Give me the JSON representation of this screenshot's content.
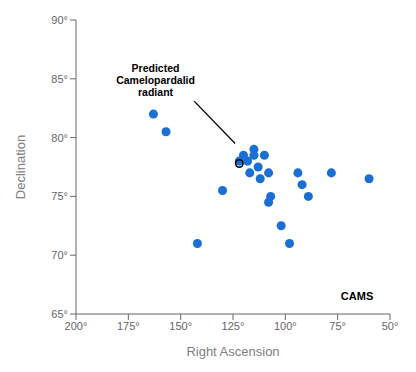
{
  "chart_data": {
    "type": "scatter",
    "xlabel": "Right Ascension",
    "ylabel": "Declination",
    "xlim": [
      200,
      50
    ],
    "ylim": [
      65,
      90
    ],
    "xticks": [
      {
        "value": 200,
        "label": "200°"
      },
      {
        "value": 175,
        "label": "175°"
      },
      {
        "value": 150,
        "label": "150°"
      },
      {
        "value": 125,
        "label": "125°"
      },
      {
        "value": 100,
        "label": "100°"
      },
      {
        "value": 75,
        "label": "75°"
      },
      {
        "value": 50,
        "label": "50°"
      }
    ],
    "yticks": [
      {
        "value": 65,
        "label": "65°"
      },
      {
        "value": 70,
        "label": "70°"
      },
      {
        "value": 75,
        "label": "75°"
      },
      {
        "value": 80,
        "label": "80°"
      },
      {
        "value": 85,
        "label": "85°"
      },
      {
        "value": 90,
        "label": "90°"
      }
    ],
    "x": [
      163,
      157,
      130,
      142,
      122,
      120,
      117,
      115,
      113,
      110,
      108,
      112,
      115,
      118,
      108,
      102,
      98,
      107,
      94,
      92,
      89,
      78,
      60
    ],
    "values": [
      82,
      80.5,
      75.5,
      71,
      78,
      78.5,
      77,
      79,
      77.5,
      78.5,
      77,
      76.5,
      78.5,
      78,
      74.5,
      72.5,
      71,
      75,
      77,
      76,
      75,
      77,
      76.5
    ],
    "color": "#1A6FD4",
    "grid": false,
    "circle": {
      "x": 122,
      "y": 77.8,
      "radius": 1.8
    },
    "annotations": [
      {
        "text": "Predicted\nCamelopardalid\nradiant",
        "x": 162,
        "y": 86.5,
        "arrow_x": 124,
        "arrow_y": 79.5
      },
      {
        "text": "CAMS",
        "x": 58,
        "y": 66.2
      }
    ]
  }
}
